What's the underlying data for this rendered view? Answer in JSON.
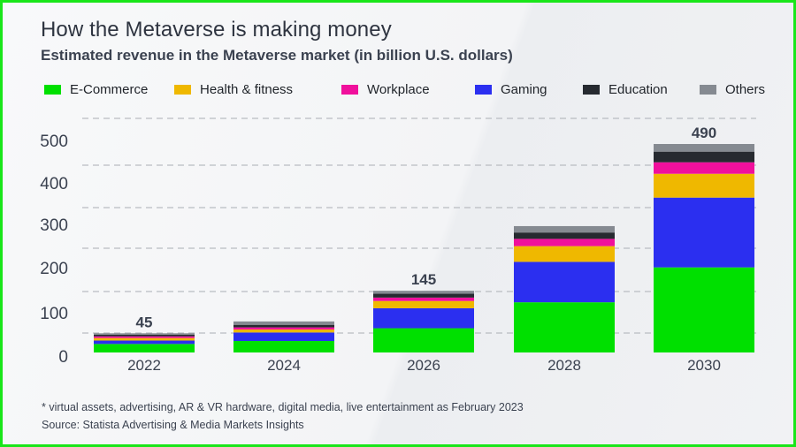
{
  "header": {
    "title": "How the Metaverse is making money",
    "subtitle": "Estimated revenue in the Metaverse market (in billion U.S. dollars)"
  },
  "footer": {
    "footnote": "* virtual assets, advertising, AR & VR hardware, digital media, live entertainment as February 2023",
    "source": "Source: Statista Advertising & Media Markets Insights"
  },
  "colors": {
    "frame_border": "#19e619",
    "E-Commerce": "#00e000",
    "Health & fitness": "#efb800",
    "Workplace": "#f0109c",
    "Gaming": "#2b2ff0",
    "Education": "#262a30",
    "Others": "#858a91",
    "text": "#2e3440",
    "grid": "#b9bcc1"
  },
  "chart_data": {
    "type": "bar",
    "stacked": true,
    "title": "How the Metaverse is making money",
    "subtitle": "Estimated revenue in the Metaverse market (in billion U.S. dollars)",
    "xlabel": "",
    "ylabel": "",
    "categories": [
      "2022",
      "2024",
      "2026",
      "2028",
      "2030"
    ],
    "yticks": [
      0,
      100,
      200,
      300,
      400,
      500
    ],
    "ylim": [
      0,
      560
    ],
    "grid": "horizontal-dashed",
    "legend_position": "top",
    "legend": [
      "E-Commerce",
      "Health & fitness",
      "Workplace",
      "Gaming",
      "Education",
      "Others"
    ],
    "stack_order": [
      "E-Commerce",
      "Gaming",
      "Health & fitness",
      "Workplace",
      "Education",
      "Others"
    ],
    "series": [
      {
        "name": "E-Commerce",
        "values": [
          20,
          27,
          57,
          118,
          200
        ]
      },
      {
        "name": "Gaming",
        "values": [
          8,
          20,
          47,
          95,
          164
        ]
      },
      {
        "name": "Health & fitness",
        "values": [
          6,
          7,
          17,
          37,
          56
        ]
      },
      {
        "name": "Workplace",
        "values": [
          4,
          5,
          8,
          17,
          27
        ]
      },
      {
        "name": "Education",
        "values": [
          4,
          6,
          9,
          15,
          25
        ]
      },
      {
        "name": "Others",
        "values": [
          3,
          8,
          7,
          15,
          18
        ]
      }
    ],
    "totals": [
      45,
      73,
      145,
      297,
      490
    ],
    "total_labels": [
      "45",
      "",
      "145",
      "",
      "490"
    ]
  }
}
